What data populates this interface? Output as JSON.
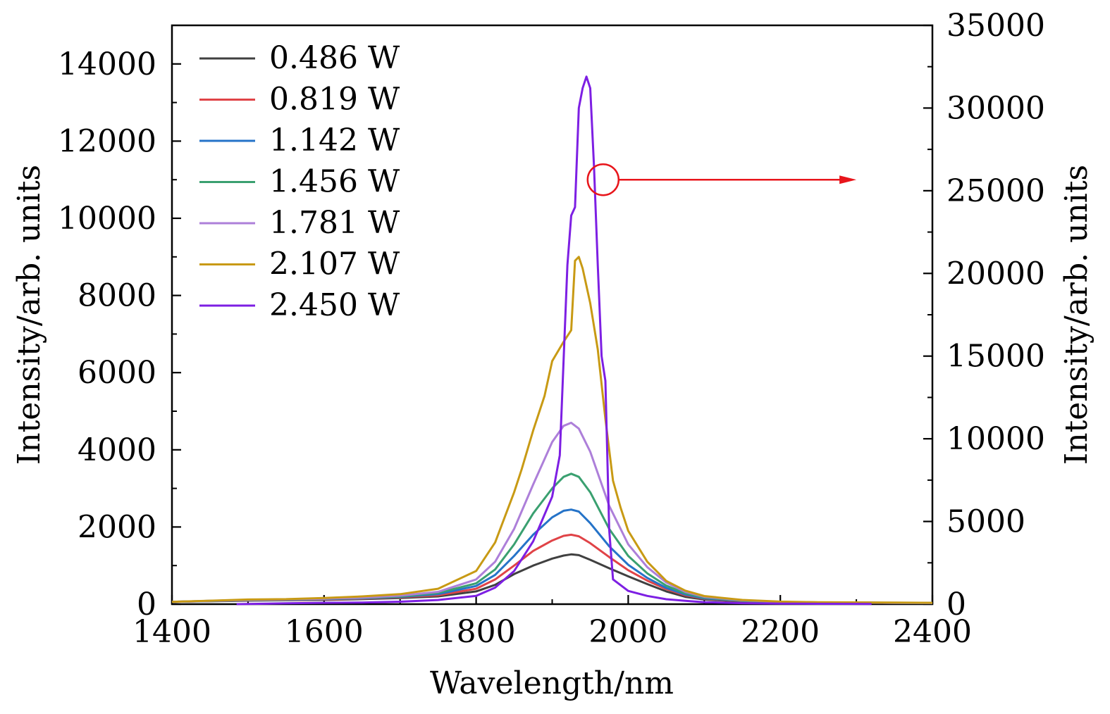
{
  "chart_data": {
    "type": "line",
    "xlabel": "Wavelength/nm",
    "ylabel": "Intensity/arb. units",
    "ylabel_right": "Intensity/arb. units",
    "xlim": [
      1400,
      2400
    ],
    "ylim": [
      0,
      15000
    ],
    "ylim_right": [
      0,
      35000
    ],
    "x_ticks": [
      1400,
      1600,
      1800,
      2000,
      2200,
      2400
    ],
    "x_tick_labels": [
      "1400",
      "1600",
      "1800",
      "2000",
      "2200",
      "2400"
    ],
    "y_ticks": [
      0,
      2000,
      4000,
      6000,
      8000,
      10000,
      12000,
      14000
    ],
    "y_tick_labels": [
      "0",
      "2000",
      "4000",
      "6000",
      "8000",
      "10000",
      "12000",
      "14000"
    ],
    "y_ticks_right": [
      0,
      5000,
      10000,
      15000,
      20000,
      25000,
      30000,
      35000
    ],
    "y_tick_labels_right": [
      "0",
      "5000",
      "10000",
      "15000",
      "20000",
      "25000",
      "30000",
      "35000"
    ],
    "grid": false,
    "legend_position": "top-left",
    "annotation": {
      "type": "circle-arrow",
      "circle_at": {
        "x": 1967,
        "y": 11000
      },
      "arrow_to": {
        "x": 2300,
        "y": 11000
      },
      "color": "#e8151b",
      "meaning": "2.450 W series plotted against right axis"
    },
    "series": [
      {
        "name": "0.486 W",
        "color": "#404040",
        "axis": "left",
        "x": [
          1400,
          1450,
          1500,
          1550,
          1600,
          1650,
          1700,
          1750,
          1800,
          1825,
          1850,
          1875,
          1900,
          1915,
          1925,
          1935,
          1950,
          1975,
          2000,
          2025,
          2050,
          2075,
          2100,
          2150,
          2200,
          2250,
          2300,
          2350,
          2400
        ],
        "y": [
          60,
          75,
          90,
          100,
          110,
          130,
          160,
          200,
          330,
          500,
          780,
          1000,
          1180,
          1260,
          1290,
          1270,
          1150,
          930,
          720,
          520,
          330,
          190,
          120,
          70,
          45,
          40,
          35,
          30,
          25
        ]
      },
      {
        "name": "0.819 W",
        "color": "#e04347",
        "axis": "left",
        "x": [
          1400,
          1450,
          1500,
          1550,
          1600,
          1650,
          1700,
          1750,
          1800,
          1825,
          1850,
          1875,
          1900,
          1915,
          1925,
          1935,
          1950,
          1975,
          2000,
          2025,
          2050,
          2075,
          2100,
          2150,
          2200,
          2250,
          2300,
          2350,
          2400
        ],
        "y": [
          60,
          80,
          95,
          105,
          120,
          140,
          180,
          230,
          400,
          640,
          1000,
          1380,
          1650,
          1770,
          1800,
          1760,
          1580,
          1220,
          880,
          610,
          390,
          230,
          140,
          80,
          50,
          45,
          40,
          35,
          30
        ]
      },
      {
        "name": "1.142 W",
        "color": "#2573c8",
        "axis": "left",
        "x": [
          1400,
          1450,
          1500,
          1550,
          1600,
          1650,
          1700,
          1750,
          1800,
          1825,
          1850,
          1875,
          1900,
          1915,
          1925,
          1935,
          1950,
          1975,
          2000,
          2025,
          2050,
          2075,
          2100,
          2150,
          2200,
          2250,
          2300,
          2350,
          2400
        ],
        "y": [
          60,
          80,
          100,
          110,
          130,
          150,
          190,
          260,
          470,
          760,
          1250,
          1800,
          2250,
          2420,
          2450,
          2400,
          2100,
          1500,
          1020,
          680,
          420,
          250,
          150,
          85,
          55,
          45,
          40,
          35,
          30
        ]
      },
      {
        "name": "1.456 W",
        "color": "#3aa070",
        "axis": "left",
        "x": [
          1400,
          1450,
          1500,
          1550,
          1600,
          1650,
          1700,
          1750,
          1800,
          1825,
          1850,
          1875,
          1900,
          1915,
          1925,
          1935,
          1950,
          1975,
          2000,
          2025,
          2050,
          2075,
          2100,
          2150,
          2200,
          2250,
          2300,
          2350,
          2400
        ],
        "y": [
          60,
          85,
          105,
          115,
          135,
          160,
          200,
          290,
          540,
          900,
          1550,
          2350,
          3000,
          3300,
          3380,
          3300,
          2900,
          1950,
          1250,
          800,
          480,
          280,
          170,
          90,
          55,
          45,
          40,
          35,
          30
        ]
      },
      {
        "name": "1.781 W",
        "color": "#ad7fd9",
        "axis": "left",
        "x": [
          1400,
          1450,
          1500,
          1550,
          1600,
          1650,
          1700,
          1750,
          1800,
          1825,
          1850,
          1875,
          1900,
          1915,
          1925,
          1935,
          1950,
          1975,
          2000,
          2025,
          2050,
          2075,
          2100,
          2150,
          2200,
          2250,
          2300,
          2350,
          2400
        ],
        "y": [
          60,
          85,
          110,
          120,
          140,
          170,
          220,
          320,
          640,
          1100,
          1950,
          3100,
          4200,
          4620,
          4700,
          4550,
          3950,
          2550,
          1550,
          960,
          560,
          320,
          190,
          100,
          60,
          45,
          40,
          35,
          30
        ]
      },
      {
        "name": "2.107 W",
        "color": "#c89a14",
        "axis": "left",
        "x": [
          1400,
          1450,
          1500,
          1550,
          1600,
          1650,
          1700,
          1750,
          1800,
          1825,
          1850,
          1860,
          1875,
          1890,
          1900,
          1915,
          1925,
          1930,
          1935,
          1940,
          1950,
          1960,
          1970,
          1980,
          1990,
          2000,
          2025,
          2050,
          2075,
          2100,
          2150,
          2200,
          2250,
          2300,
          2350,
          2400
        ],
        "y": [
          60,
          90,
          120,
          130,
          160,
          200,
          260,
          400,
          860,
          1600,
          2900,
          3500,
          4500,
          5400,
          6300,
          6800,
          7100,
          8900,
          9000,
          8700,
          7800,
          6600,
          4800,
          3200,
          2500,
          1900,
          1100,
          600,
          350,
          210,
          110,
          65,
          50,
          45,
          40,
          35
        ]
      },
      {
        "name": "2.450 W",
        "color": "#7d1fe3",
        "axis": "right",
        "x": [
          1485,
          1550,
          1600,
          1650,
          1700,
          1750,
          1800,
          1825,
          1850,
          1875,
          1900,
          1910,
          1920,
          1925,
          1930,
          1935,
          1940,
          1945,
          1950,
          1955,
          1960,
          1965,
          1970,
          1975,
          1980,
          2000,
          2025,
          2050,
          2075,
          2100,
          2150,
          2200,
          2250,
          2300,
          2320
        ],
        "y": [
          0,
          50,
          80,
          100,
          150,
          250,
          500,
          1000,
          2000,
          3800,
          6500,
          9000,
          20500,
          23500,
          24000,
          30000,
          31200,
          31900,
          31200,
          26500,
          20500,
          15000,
          13500,
          4500,
          1500,
          800,
          500,
          300,
          200,
          120,
          60,
          30,
          20,
          15,
          10
        ]
      }
    ]
  }
}
